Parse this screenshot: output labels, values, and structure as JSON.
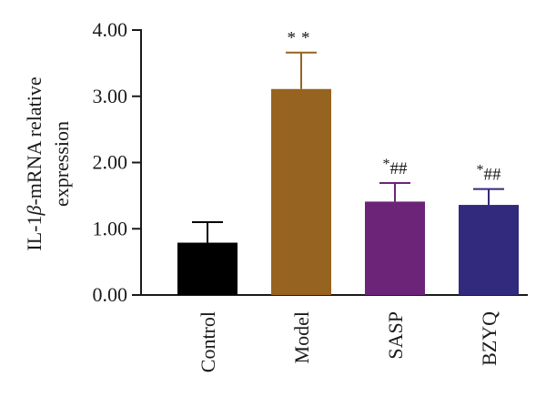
{
  "chart_data": {
    "type": "bar",
    "categories": [
      "Control",
      "Model",
      "SASP",
      "BZYQ"
    ],
    "values": [
      0.79,
      3.11,
      1.41,
      1.36
    ],
    "errors": [
      0.31,
      0.55,
      0.28,
      0.24
    ],
    "colors": [
      "#000000",
      "#976320",
      "#6c2478",
      "#322a7c"
    ],
    "annotations": [
      {
        "star": "",
        "hash": ""
      },
      {
        "star": "**",
        "hash": ""
      },
      {
        "star": "*",
        "hash": "##"
      },
      {
        "star": "*",
        "hash": "##"
      }
    ],
    "ylabel_line1_prefix": "IL-1",
    "ylabel_line1_greek": "β",
    "ylabel_line1_suffix": "-mRNA relative",
    "ylabel_line2": "expression",
    "ylim": [
      0,
      4
    ],
    "yticks": [
      0,
      1,
      2,
      3,
      4
    ],
    "ytick_labels": [
      "0.00",
      "1.00",
      "2.00",
      "3.00",
      "4.00"
    ],
    "grid": false
  }
}
